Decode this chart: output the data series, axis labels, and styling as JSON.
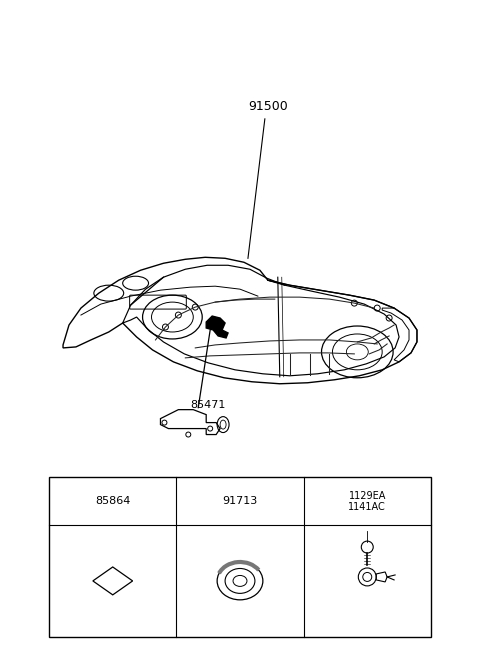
{
  "bg_color": "#ffffff",
  "line_color": "#000000",
  "fig_width": 4.8,
  "fig_height": 6.55,
  "dpi": 100,
  "label_91500": "91500",
  "label_85471": "85471",
  "label_85864": "85864",
  "label_91713": "91713",
  "label_1129EA": "1129EA",
  "label_1141AC": "1141AC",
  "font_size_labels": 8
}
